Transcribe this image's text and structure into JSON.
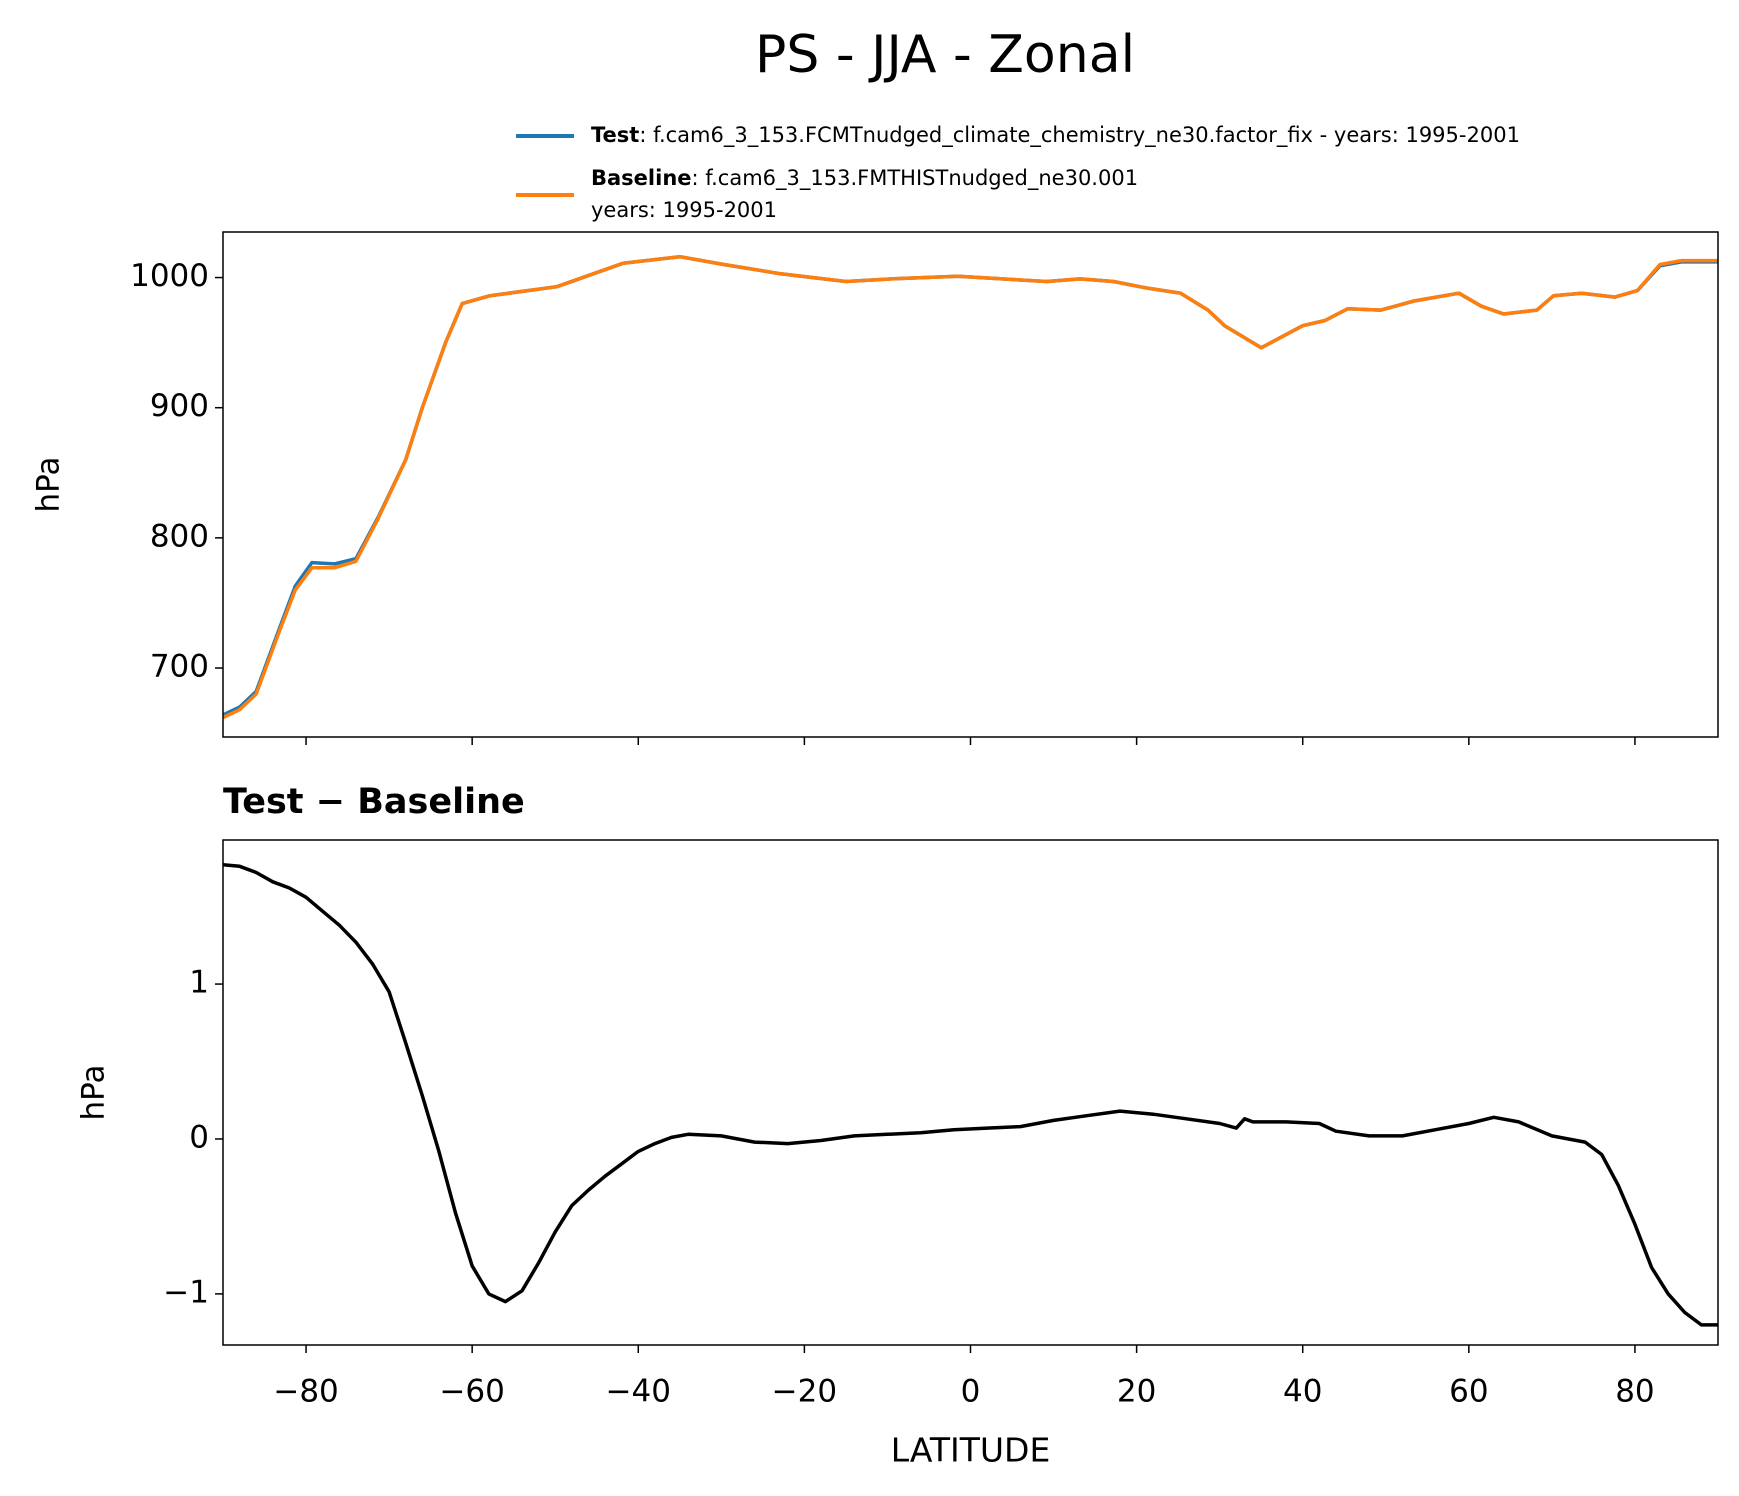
{
  "title": "PS - JJA - Zonal",
  "chart_data": [
    {
      "type": "line",
      "ylabel": "hPa",
      "x": [
        -90,
        -88,
        -86,
        -83.4,
        -81.3,
        -79.3,
        -76.6,
        -74,
        -71.3,
        -68,
        -66,
        -63.2,
        -61.2,
        -57.9,
        -49.8,
        -41.8,
        -35,
        -29.7,
        -23,
        -15,
        -9.6,
        -1.5,
        3.8,
        9.2,
        13.2,
        17.2,
        21.2,
        25.3,
        28.6,
        30.6,
        35,
        40,
        42.7,
        45.4,
        49.4,
        53.4,
        58.8,
        61.5,
        64.2,
        68.2,
        70.2,
        73.6,
        77.6,
        80.3,
        83,
        85.6,
        90
      ],
      "series": [
        {
          "name": "Test",
          "label": ": f.cam6_3_153.FCMTnudged_climate_chemistry_ne30.factor_fix - years: 1995-2001",
          "color": "#1f77b4",
          "values": [
            664,
            670,
            682,
            727,
            763,
            781,
            780,
            784,
            816,
            860,
            900,
            950,
            980,
            986,
            993,
            1011,
            1016,
            1010,
            1003,
            997,
            999,
            1001,
            999,
            997,
            999,
            997,
            992,
            988,
            975,
            963,
            946,
            963,
            967,
            976,
            975,
            982,
            988,
            978,
            972,
            975,
            986,
            988,
            985,
            990,
            1009,
            1012,
            1012
          ]
        },
        {
          "name": "Baseline",
          "label": [
            ": f.cam6_3_153.FMTHISTnudged_ne30.001",
            "years: 1995-2001"
          ],
          "color": "#ff7f0e",
          "values": [
            662,
            668,
            680,
            725,
            760,
            777,
            777,
            782,
            815,
            860,
            900,
            950,
            980,
            986,
            993,
            1011,
            1016,
            1010,
            1003,
            997,
            999,
            1001,
            999,
            997,
            999,
            997,
            992,
            988,
            975,
            963,
            946,
            963,
            967,
            976,
            975,
            982,
            988,
            978,
            972,
            975,
            986,
            988,
            985,
            990,
            1010,
            1013,
            1013
          ]
        }
      ],
      "xlim": [
        -90,
        90
      ],
      "xticks": [
        {
          "value": -80,
          "label": "−80"
        },
        {
          "value": -60,
          "label": "−60"
        },
        {
          "value": -40,
          "label": "−40"
        },
        {
          "value": -20,
          "label": "−20"
        },
        0,
        20,
        40,
        60,
        80
      ],
      "xticklabels": false,
      "ylim": [
        647,
        1035
      ],
      "yticks": [
        700,
        800,
        900,
        1000
      ],
      "legend": "top"
    },
    {
      "type": "line",
      "title": "Test − Baseline",
      "xlabel": "LATITUDE",
      "ylabel": "hPa",
      "x": [
        -90,
        -88,
        -86,
        -84,
        -82,
        -80,
        -78,
        -76,
        -74,
        -72,
        -70,
        -68,
        -66,
        -64,
        -62,
        -60,
        -58,
        -56,
        -54,
        -52,
        -50,
        -48,
        -46,
        -44,
        -42,
        -40,
        -38,
        -36,
        -34,
        -30,
        -26,
        -22,
        -18,
        -14,
        -10,
        -6,
        -2,
        2,
        6,
        10,
        14,
        18,
        22,
        26,
        30,
        32,
        33,
        34,
        38,
        42,
        44,
        48,
        52,
        56,
        60,
        63,
        66,
        70,
        74,
        76,
        78,
        80,
        82,
        84,
        86,
        88,
        90
      ],
      "series": [
        {
          "name": "Test − Baseline",
          "color": "#000000",
          "values": [
            1.77,
            1.76,
            1.72,
            1.66,
            1.62,
            1.56,
            1.47,
            1.38,
            1.27,
            1.13,
            0.95,
            0.62,
            0.28,
            -0.08,
            -0.48,
            -0.82,
            -1.0,
            -1.05,
            -0.98,
            -0.8,
            -0.6,
            -0.43,
            -0.33,
            -0.24,
            -0.16,
            -0.08,
            -0.03,
            0.01,
            0.03,
            0.02,
            -0.02,
            -0.03,
            -0.01,
            0.02,
            0.03,
            0.04,
            0.06,
            0.07,
            0.08,
            0.12,
            0.15,
            0.18,
            0.16,
            0.13,
            0.1,
            0.07,
            0.13,
            0.11,
            0.11,
            0.1,
            0.05,
            0.02,
            0.02,
            0.06,
            0.1,
            0.14,
            0.11,
            0.02,
            -0.02,
            -0.1,
            -0.3,
            -0.55,
            -0.83,
            -1.0,
            -1.12,
            -1.2,
            -1.2
          ]
        }
      ],
      "xlim": [
        -90,
        90
      ],
      "xticks": [
        {
          "value": -80,
          "label": "−80"
        },
        {
          "value": -60,
          "label": "−60"
        },
        {
          "value": -40,
          "label": "−40"
        },
        {
          "value": -20,
          "label": "−20"
        },
        0,
        20,
        40,
        60,
        80
      ],
      "xticklabels": true,
      "ylim": [
        -1.33,
        1.93
      ],
      "yticks": [
        {
          "value": -1,
          "label": "−1"
        },
        0,
        1
      ]
    }
  ]
}
